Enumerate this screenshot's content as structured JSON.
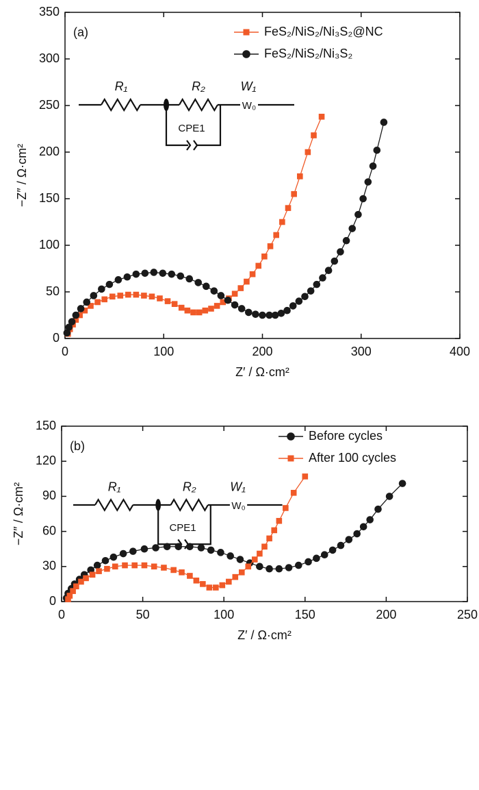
{
  "chart_data": [
    {
      "type": "scatter",
      "panel_label": "(a)",
      "x_label": "Z′ / Ω·cm²",
      "y_label": "−Z″ / Ω·cm²",
      "xlim": [
        0,
        400
      ],
      "xticks": [
        0,
        100,
        200,
        300,
        400
      ],
      "ylim": [
        0,
        350
      ],
      "yticks": [
        0,
        50,
        100,
        150,
        200,
        250,
        300,
        350
      ],
      "legend": "upper right",
      "legend_text_colored": true,
      "circuit": {
        "r1": "R₁",
        "r2": "R₂",
        "w1": "W₁",
        "w0": "W₀",
        "cpe": "CPE1"
      },
      "series": [
        {
          "name": "FeS₂/NiS₂/Ni₃S₂@NC",
          "color": "#f05a28",
          "marker": "square",
          "x": [
            3,
            5,
            8,
            11,
            15,
            20,
            26,
            33,
            40,
            48,
            56,
            64,
            72,
            80,
            88,
            96,
            104,
            111,
            118,
            124,
            130,
            136,
            142,
            148,
            154,
            160,
            166,
            172,
            178,
            184,
            190,
            196,
            202,
            208,
            214,
            220,
            226,
            232,
            238,
            246,
            252,
            260
          ],
          "values": [
            5,
            10,
            15,
            20,
            25,
            30,
            35,
            39,
            42,
            45,
            46,
            47,
            47,
            46,
            45,
            43,
            40,
            37,
            33,
            30,
            28,
            28,
            30,
            32,
            35,
            39,
            43,
            48,
            54,
            61,
            69,
            78,
            88,
            99,
            111,
            125,
            140,
            155,
            174,
            200,
            218,
            238
          ]
        },
        {
          "name": "FeS₂/NiS₂/Ni₃S₂",
          "color": "#1a1a1a",
          "marker": "circle",
          "x": [
            2,
            4,
            7,
            11,
            16,
            22,
            29,
            37,
            45,
            54,
            63,
            72,
            81,
            90,
            99,
            108,
            117,
            126,
            135,
            143,
            151,
            158,
            165,
            172,
            179,
            186,
            193,
            200,
            207,
            213,
            219,
            225,
            231,
            237,
            243,
            249,
            255,
            261,
            267,
            273,
            279,
            285,
            291,
            297,
            302,
            307,
            312,
            316,
            323
          ],
          "values": [
            6,
            12,
            18,
            25,
            32,
            39,
            46,
            53,
            58,
            63,
            66,
            69,
            70,
            71,
            70,
            69,
            67,
            64,
            60,
            56,
            51,
            46,
            41,
            36,
            32,
            28,
            26,
            25,
            25,
            25,
            27,
            30,
            35,
            40,
            45,
            51,
            58,
            65,
            73,
            83,
            93,
            105,
            118,
            133,
            150,
            168,
            185,
            202,
            232
          ]
        }
      ]
    },
    {
      "type": "scatter",
      "panel_label": "(b)",
      "x_label": "Z′ / Ω·cm²",
      "y_label": "−Z″ / Ω·cm²",
      "xlim": [
        0,
        250
      ],
      "xticks": [
        0,
        50,
        100,
        150,
        200,
        250
      ],
      "ylim": [
        0,
        150
      ],
      "yticks": [
        0,
        30,
        60,
        90,
        120,
        150
      ],
      "legend": "upper right",
      "legend_text_colored": false,
      "circuit": {
        "r1": "R₁",
        "r2": "R₂",
        "w1": "W₁",
        "w0": "W₀",
        "cpe": "CPE1"
      },
      "series": [
        {
          "name": "Before cycles",
          "color": "#1a1a1a",
          "marker": "circle",
          "x": [
            3,
            4,
            6,
            8,
            11,
            14,
            18,
            22,
            27,
            32,
            38,
            44,
            51,
            58,
            65,
            72,
            79,
            86,
            92,
            98,
            104,
            110,
            116,
            122,
            128,
            134,
            140,
            146,
            152,
            157,
            162,
            167,
            172,
            177,
            182,
            186,
            190,
            195,
            202,
            210
          ],
          "values": [
            3,
            7,
            11,
            15,
            19,
            23,
            27,
            31,
            35,
            38,
            41,
            43,
            45,
            46,
            47,
            47,
            47,
            46,
            44,
            42,
            39,
            36,
            33,
            30,
            28,
            28,
            29,
            31,
            34,
            37,
            40,
            44,
            48,
            53,
            58,
            64,
            70,
            79,
            90,
            101
          ]
        },
        {
          "name": "After 100 cycles",
          "color": "#f05a28",
          "marker": "square",
          "x": [
            4,
            5,
            7,
            9,
            12,
            15,
            19,
            23,
            28,
            33,
            39,
            45,
            51,
            57,
            63,
            69,
            74,
            79,
            83,
            87,
            91,
            95,
            99,
            103,
            107,
            111,
            115,
            119,
            122,
            125,
            128,
            131,
            134,
            138,
            143,
            150
          ],
          "values": [
            2,
            5,
            9,
            13,
            17,
            20,
            23,
            26,
            28,
            30,
            31,
            31,
            31,
            30,
            29,
            27,
            25,
            22,
            18,
            15,
            12,
            12,
            14,
            17,
            21,
            25,
            30,
            36,
            41,
            47,
            54,
            61,
            69,
            80,
            93,
            107
          ]
        }
      ]
    }
  ]
}
